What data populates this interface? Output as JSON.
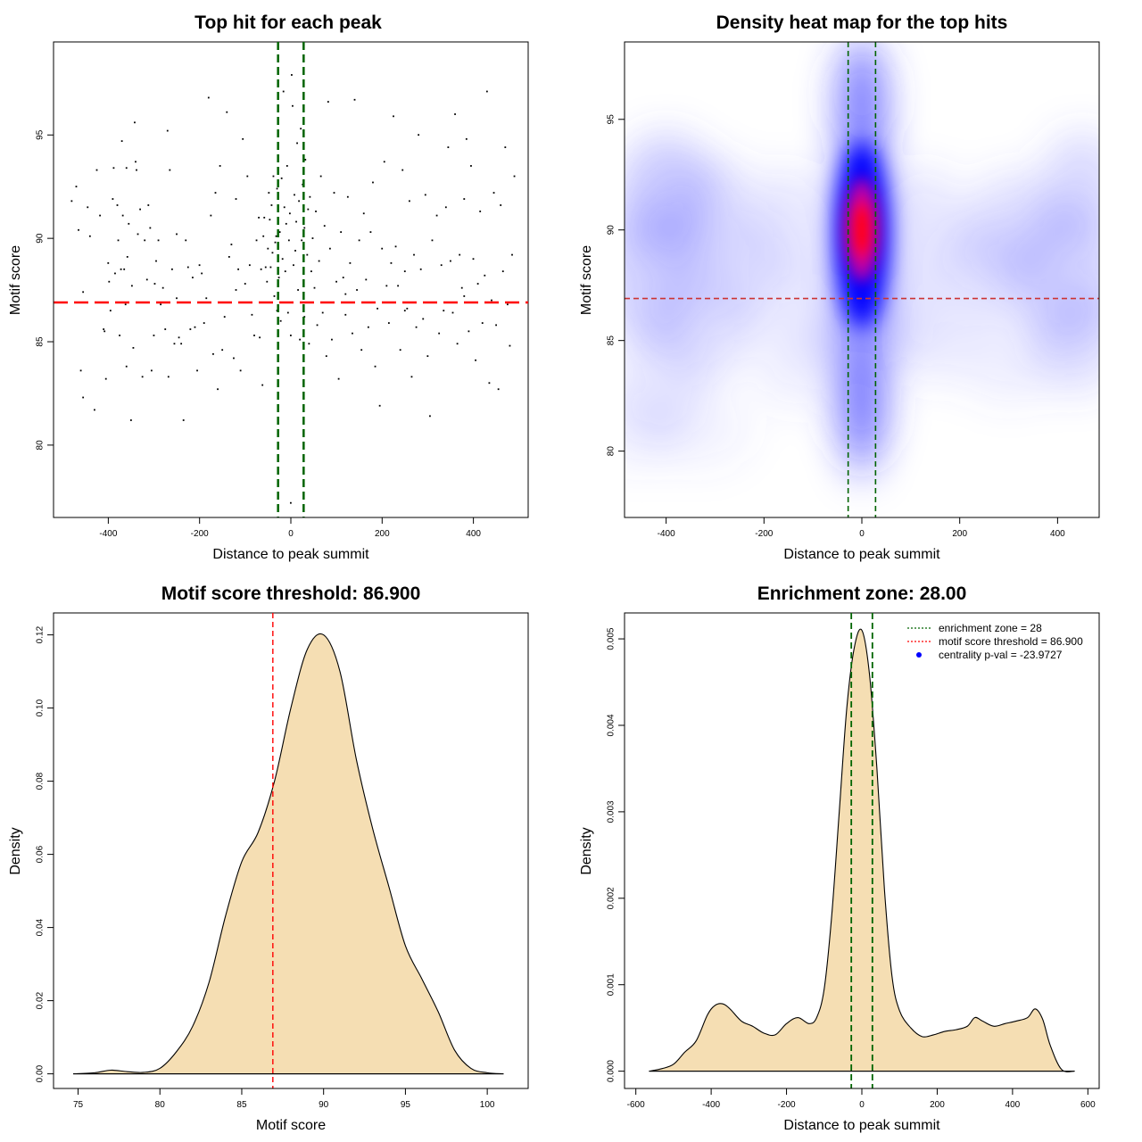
{
  "chart_data": [
    {
      "type": "scatter",
      "title": "Top hit for each peak",
      "xlabel": "Distance to peak summit",
      "ylabel": "Motif score",
      "xlim": [
        -520,
        520
      ],
      "ylim": [
        76.5,
        99.5
      ],
      "xticks": [
        -400,
        -200,
        0,
        200,
        400
      ],
      "yticks": [
        80,
        85,
        90,
        95
      ],
      "vlines": {
        "values": [
          -28,
          28
        ],
        "color": "#006400",
        "style": "dashed"
      },
      "hline": {
        "value": 86.9,
        "color": "#ff0000",
        "style": "dashed"
      },
      "points": [
        [
          -480,
          91.8
        ],
        [
          -470,
          92.5
        ],
        [
          -465,
          90.4
        ],
        [
          -460,
          83.6
        ],
        [
          -455,
          82.3
        ],
        [
          -445,
          91.5
        ],
        [
          -440,
          90.1
        ],
        [
          -430,
          81.7
        ],
        [
          -425,
          93.3
        ],
        [
          -418,
          91.1
        ],
        [
          -410,
          85.6
        ],
        [
          -408,
          85.5
        ],
        [
          -405,
          83.2
        ],
        [
          -400,
          88.8
        ],
        [
          -398,
          87.9
        ],
        [
          -395,
          86.5
        ],
        [
          -390,
          91.9
        ],
        [
          -388,
          93.4
        ],
        [
          -385,
          88.3
        ],
        [
          -380,
          91.6
        ],
        [
          -378,
          89.9
        ],
        [
          -375,
          85.3
        ],
        [
          -372,
          88.5
        ],
        [
          -370,
          94.7
        ],
        [
          -368,
          91.1
        ],
        [
          -365,
          88.5
        ],
        [
          -362,
          86.8
        ],
        [
          -360,
          93.4
        ],
        [
          -358,
          89.1
        ],
        [
          -355,
          90.7
        ],
        [
          -350,
          81.2
        ],
        [
          -348,
          87.7
        ],
        [
          -345,
          84.7
        ],
        [
          -342,
          95.6
        ],
        [
          -340,
          93.7
        ],
        [
          -338,
          93.3
        ],
        [
          -335,
          90.2
        ],
        [
          -330,
          91.4
        ],
        [
          -325,
          83.3
        ],
        [
          -320,
          89.9
        ],
        [
          -315,
          88.0
        ],
        [
          -312,
          91.6
        ],
        [
          -308,
          90.5
        ],
        [
          -305,
          83.6
        ],
        [
          -300,
          85.3
        ],
        [
          -298,
          87.8
        ],
        [
          -295,
          88.9
        ],
        [
          -290,
          89.9
        ],
        [
          -285,
          86.8
        ],
        [
          -280,
          87.6
        ],
        [
          -275,
          85.6
        ],
        [
          -270,
          95.2
        ],
        [
          -268,
          83.3
        ],
        [
          -265,
          93.3
        ],
        [
          -260,
          88.5
        ],
        [
          -255,
          84.9
        ],
        [
          -250,
          90.2
        ],
        [
          -245,
          85.2
        ],
        [
          -240,
          84.9
        ],
        [
          -235,
          81.2
        ],
        [
          -230,
          89.9
        ],
        [
          -225,
          88.6
        ],
        [
          -220,
          85.6
        ],
        [
          -215,
          88.1
        ],
        [
          -210,
          85.7
        ],
        [
          -205,
          83.6
        ],
        [
          -200,
          88.7
        ],
        [
          -195,
          88.3
        ],
        [
          -190,
          85.9
        ],
        [
          -185,
          87.1
        ],
        [
          -180,
          96.8
        ],
        [
          -175,
          91.1
        ],
        [
          -170,
          84.4
        ],
        [
          -165,
          92.2
        ],
        [
          -160,
          82.7
        ],
        [
          -155,
          93.5
        ],
        [
          -150,
          84.6
        ],
        [
          -145,
          86.2
        ],
        [
          -140,
          96.1
        ],
        [
          -135,
          89.1
        ],
        [
          -130,
          89.7
        ],
        [
          -125,
          84.2
        ],
        [
          -120,
          91.9
        ],
        [
          -115,
          88.5
        ],
        [
          -110,
          83.6
        ],
        [
          -105,
          94.8
        ],
        [
          -100,
          87.8
        ],
        [
          -95,
          93.0
        ],
        [
          -90,
          88.7
        ],
        [
          -85,
          86.3
        ],
        [
          -80,
          85.3
        ],
        [
          -75,
          89.9
        ],
        [
          -70,
          91.0
        ],
        [
          -68,
          85.2
        ],
        [
          -65,
          88.5
        ],
        [
          -62,
          82.9
        ],
        [
          -60,
          90.1
        ],
        [
          -58,
          91.0
        ],
        [
          -55,
          88.6
        ],
        [
          -52,
          87.9
        ],
        [
          -50,
          89.5
        ],
        [
          -48,
          92.2
        ],
        [
          -46,
          90.9
        ],
        [
          -44,
          88.6
        ],
        [
          -42,
          91.6
        ],
        [
          -40,
          89.3
        ],
        [
          -38,
          93.0
        ],
        [
          -36,
          87.2
        ],
        [
          -34,
          89.8
        ],
        [
          -32,
          90.1
        ],
        [
          -30,
          92.4
        ],
        [
          -28,
          91.0
        ],
        [
          -26,
          88.1
        ],
        [
          -24,
          90.3
        ],
        [
          -22,
          86.0
        ],
        [
          -20,
          92.9
        ],
        [
          -18,
          89.0
        ],
        [
          -16,
          97.1
        ],
        [
          -14,
          91.5
        ],
        [
          -12,
          88.4
        ],
        [
          -10,
          90.7
        ],
        [
          -8,
          93.5
        ],
        [
          -6,
          86.4
        ],
        [
          -4,
          89.9
        ],
        [
          -2,
          91.2
        ],
        [
          0,
          77.2
        ],
        [
          2,
          97.9
        ],
        [
          4,
          96.4
        ],
        [
          6,
          88.7
        ],
        [
          8,
          92.1
        ],
        [
          10,
          89.4
        ],
        [
          12,
          90.8
        ],
        [
          14,
          94.6
        ],
        [
          16,
          87.5
        ],
        [
          18,
          91.8
        ],
        [
          20,
          85.1
        ],
        [
          22,
          95.3
        ],
        [
          24,
          89.9
        ],
        [
          26,
          92.6
        ],
        [
          28,
          88.3
        ],
        [
          30,
          90.5
        ],
        [
          32,
          93.8
        ],
        [
          34,
          86.9
        ],
        [
          36,
          89.2
        ],
        [
          38,
          91.4
        ],
        [
          40,
          84.9
        ],
        [
          42,
          92.0
        ],
        [
          45,
          88.4
        ],
        [
          48,
          90.0
        ],
        [
          52,
          87.6
        ],
        [
          55,
          91.3
        ],
        [
          58,
          85.8
        ],
        [
          62,
          88.9
        ],
        [
          66,
          93.0
        ],
        [
          70,
          86.4
        ],
        [
          74,
          90.6
        ],
        [
          78,
          84.3
        ],
        [
          82,
          96.6
        ],
        [
          86,
          89.5
        ],
        [
          90,
          85.1
        ],
        [
          95,
          92.2
        ],
        [
          100,
          87.9
        ],
        [
          105,
          83.2
        ],
        [
          110,
          90.3
        ],
        [
          115,
          88.1
        ],
        [
          120,
          86.3
        ],
        [
          125,
          92.0
        ],
        [
          130,
          88.8
        ],
        [
          135,
          85.4
        ],
        [
          140,
          96.7
        ],
        [
          145,
          87.5
        ],
        [
          150,
          89.9
        ],
        [
          155,
          84.6
        ],
        [
          160,
          91.2
        ],
        [
          165,
          88.0
        ],
        [
          170,
          85.7
        ],
        [
          175,
          90.3
        ],
        [
          180,
          92.7
        ],
        [
          185,
          83.8
        ],
        [
          190,
          86.6
        ],
        [
          195,
          81.9
        ],
        [
          200,
          89.5
        ],
        [
          205,
          93.7
        ],
        [
          210,
          87.7
        ],
        [
          215,
          85.9
        ],
        [
          220,
          88.8
        ],
        [
          225,
          95.9
        ],
        [
          230,
          89.6
        ],
        [
          235,
          87.7
        ],
        [
          240,
          84.6
        ],
        [
          245,
          93.3
        ],
        [
          250,
          88.4
        ],
        [
          255,
          86.6
        ],
        [
          260,
          91.8
        ],
        [
          265,
          83.3
        ],
        [
          270,
          89.2
        ],
        [
          275,
          85.7
        ],
        [
          280,
          95.0
        ],
        [
          285,
          88.5
        ],
        [
          290,
          86.1
        ],
        [
          295,
          92.1
        ],
        [
          300,
          84.3
        ],
        [
          305,
          81.4
        ],
        [
          310,
          89.9
        ],
        [
          315,
          86.9
        ],
        [
          320,
          91.1
        ],
        [
          325,
          85.4
        ],
        [
          330,
          88.7
        ],
        [
          335,
          86.5
        ],
        [
          340,
          91.5
        ],
        [
          345,
          94.4
        ],
        [
          350,
          88.9
        ],
        [
          355,
          86.4
        ],
        [
          360,
          96.0
        ],
        [
          365,
          84.9
        ],
        [
          370,
          89.2
        ],
        [
          375,
          87.6
        ],
        [
          380,
          91.9
        ],
        [
          385,
          94.8
        ],
        [
          390,
          85.5
        ],
        [
          395,
          93.5
        ],
        [
          400,
          89.0
        ],
        [
          405,
          84.1
        ],
        [
          410,
          87.8
        ],
        [
          415,
          91.3
        ],
        [
          420,
          85.9
        ],
        [
          425,
          88.2
        ],
        [
          430,
          97.1
        ],
        [
          435,
          83.0
        ],
        [
          440,
          87.0
        ],
        [
          445,
          92.2
        ],
        [
          450,
          85.8
        ],
        [
          455,
          82.7
        ],
        [
          460,
          91.6
        ],
        [
          465,
          88.4
        ],
        [
          470,
          94.4
        ],
        [
          475,
          86.8
        ],
        [
          480,
          84.8
        ],
        [
          485,
          89.2
        ],
        [
          490,
          93.0
        ],
        [
          -455,
          87.4
        ],
        [
          -360,
          83.8
        ],
        [
          -250,
          87.1
        ],
        [
          -120,
          87.5
        ],
        [
          120,
          87.3
        ],
        [
          250,
          86.5
        ],
        [
          380,
          87.2
        ],
        [
          -30,
          86.5
        ],
        [
          30,
          86.2
        ],
        [
          0,
          85.3
        ]
      ]
    },
    {
      "type": "heatmap",
      "title": "Density heat map for the top hits",
      "xlabel": "Distance to peak summit",
      "ylabel": "Motif score",
      "xlim": [
        -485,
        485
      ],
      "ylim": [
        77,
        98.5
      ],
      "xticks": [
        -400,
        -200,
        0,
        200,
        400
      ],
      "yticks": [
        80,
        85,
        90,
        95
      ],
      "vlines": {
        "values": [
          -28,
          28
        ],
        "color": "#006400",
        "style": "dashed"
      },
      "hline": {
        "value": 86.9,
        "color": "#cc3333",
        "style": "dashed"
      },
      "peak": {
        "x": 0,
        "y": 90
      }
    },
    {
      "type": "area",
      "title": "Motif score threshold: 86.900",
      "xlabel": "Motif score",
      "ylabel": "Density",
      "xlim": [
        73.5,
        102.5
      ],
      "ylim": [
        -0.004,
        0.126
      ],
      "xticks": [
        75,
        80,
        85,
        90,
        95,
        100
      ],
      "yticks": [
        0.0,
        0.02,
        0.04,
        0.06,
        0.08,
        0.1,
        0.12
      ],
      "ytick_labels": [
        "0.00",
        "0.02",
        "0.04",
        "0.06",
        "0.08",
        "0.10",
        "0.12"
      ],
      "fill": "#f5deb3",
      "threshold": {
        "value": 86.9,
        "color": "#ff0000",
        "style": "dashed"
      },
      "x": [
        74.7,
        76,
        77,
        78,
        79,
        80,
        81,
        82,
        83,
        84,
        85,
        86,
        87,
        88,
        89,
        90,
        91,
        92,
        93,
        94,
        95,
        96,
        97,
        98,
        99,
        100,
        101
      ],
      "y": [
        0.0,
        0.0003,
        0.001,
        0.0006,
        0.0004,
        0.0015,
        0.006,
        0.013,
        0.025,
        0.043,
        0.058,
        0.066,
        0.08,
        0.1,
        0.116,
        0.12,
        0.11,
        0.086,
        0.067,
        0.051,
        0.035,
        0.026,
        0.017,
        0.0065,
        0.0015,
        0.0003,
        0.0
      ]
    },
    {
      "type": "area",
      "title": "Enrichment zone: 28.00",
      "xlabel": "Distance to peak summit",
      "ylabel": "Density",
      "xlim": [
        -630,
        630
      ],
      "ylim": [
        -0.0002,
        0.0053
      ],
      "xticks": [
        -600,
        -400,
        -200,
        0,
        200,
        400,
        600
      ],
      "yticks": [
        0.0,
        0.001,
        0.002,
        0.003,
        0.004,
        0.005
      ],
      "ytick_labels": [
        "0.000",
        "0.001",
        "0.002",
        "0.003",
        "0.004",
        "0.005"
      ],
      "fill": "#f5deb3",
      "vlines": {
        "values": [
          -28,
          28
        ],
        "color": "#006400",
        "style": "dashed"
      },
      "legend": {
        "position": "top-right",
        "entries": [
          {
            "label": "enrichment zone = 28",
            "color": "#006400",
            "symbol": "dotted-line"
          },
          {
            "label": "motif score threshold = 86.900",
            "color": "#ff0000",
            "symbol": "dotted-line"
          },
          {
            "label": "centrality p-val = -23.9727",
            "color": "#0000ff",
            "symbol": "dot"
          }
        ]
      },
      "x": [
        -565,
        -530,
        -500,
        -470,
        -440,
        -410,
        -390,
        -370,
        -350,
        -320,
        -290,
        -260,
        -230,
        -200,
        -170,
        -140,
        -120,
        -100,
        -80,
        -60,
        -40,
        -20,
        0,
        20,
        40,
        60,
        80,
        100,
        130,
        160,
        190,
        220,
        250,
        280,
        300,
        320,
        350,
        380,
        410,
        440,
        460,
        480,
        500,
        530,
        565
      ],
      "y": [
        0,
        3e-05,
        8e-05,
        0.00022,
        0.00035,
        0.00065,
        0.00076,
        0.00078,
        0.00072,
        0.00058,
        0.00052,
        0.00044,
        0.00042,
        0.00055,
        0.00062,
        0.00055,
        0.00062,
        0.00095,
        0.0018,
        0.003,
        0.0042,
        0.0049,
        0.0051,
        0.0046,
        0.0035,
        0.0021,
        0.0011,
        0.0007,
        0.0005,
        0.0004,
        0.00042,
        0.00046,
        0.00048,
        0.00052,
        0.00062,
        0.00058,
        0.00052,
        0.00055,
        0.00058,
        0.00062,
        0.00072,
        0.0006,
        0.0003,
        2e-05,
        0
      ]
    }
  ]
}
